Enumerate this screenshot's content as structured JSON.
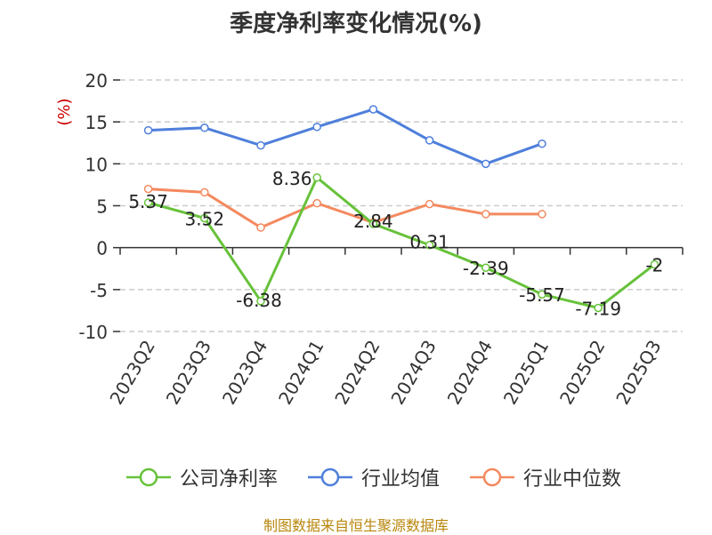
{
  "chart_data": {
    "type": "line",
    "title": "季度净利率变化情况(%)",
    "ylabel": "(%)",
    "ylim": [
      -10,
      20
    ],
    "yticks": [
      -10,
      -5,
      0,
      5,
      10,
      15,
      20
    ],
    "grid": true,
    "legend_position": "bottom",
    "categories": [
      "2023Q2",
      "2023Q3",
      "2023Q4",
      "2024Q1",
      "2024Q2",
      "2024Q3",
      "2024Q4",
      "2025Q1",
      "2025Q2",
      "2025Q3"
    ],
    "series": [
      {
        "name": "公司净利率",
        "color": "#67c23a",
        "show_labels": true,
        "values": [
          5.37,
          3.52,
          -6.38,
          8.36,
          2.84,
          0.31,
          -2.39,
          -5.57,
          -7.19,
          -2
        ]
      },
      {
        "name": "行业均值",
        "color": "#4e7fdb",
        "show_labels": false,
        "values": [
          14.0,
          14.3,
          12.2,
          14.4,
          16.5,
          12.8,
          10.0,
          12.4,
          null,
          null
        ]
      },
      {
        "name": "行业中位数",
        "color": "#f4895f",
        "show_labels": false,
        "values": [
          7.0,
          6.6,
          2.4,
          5.3,
          3.0,
          5.2,
          4.0,
          4.0,
          null,
          null
        ]
      }
    ]
  },
  "source": "制图数据来自恒生聚源数据库"
}
